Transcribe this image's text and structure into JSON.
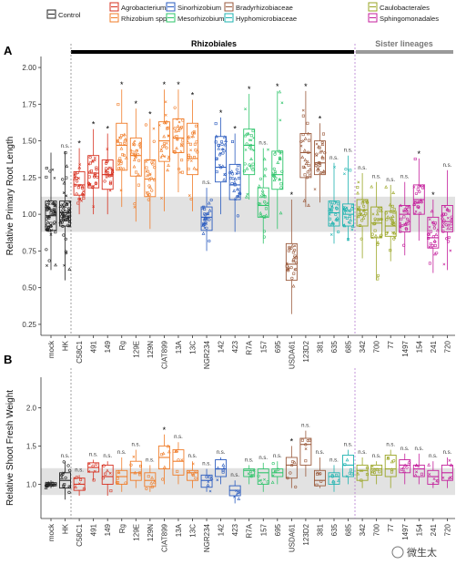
{
  "legend": {
    "entries": [
      {
        "label": "Control",
        "color": "#222222"
      },
      {
        "label": "Agrobacterium",
        "color": "#d7301f"
      },
      {
        "label": "Rhizobium spp.",
        "color": "#f07c28"
      },
      {
        "label": "Sinorhizobium",
        "color": "#2a5bbf"
      },
      {
        "label": "Mesorhizobium",
        "color": "#2ec46a"
      },
      {
        "label": "Bradyrhizobiaceae",
        "color": "#9a5a3c"
      },
      {
        "label": "Hyphomicrobiaceae",
        "color": "#1fb3b0"
      },
      {
        "label": "Caulobacterales",
        "color": "#9aa524"
      },
      {
        "label": "Sphingomonadales",
        "color": "#c41f9c"
      }
    ]
  },
  "panels": {
    "a_label": "A",
    "b_label": "B"
  },
  "groups": {
    "rhizobiales": "Rhizobiales",
    "sister": "Sister lineages"
  },
  "watermark": "微生太",
  "chart_data": [
    {
      "type": "box",
      "panel": "A",
      "ylabel": "Relative Primary Root Length",
      "ylim": [
        0.2,
        2.05
      ],
      "yticks": [
        0.25,
        0.5,
        0.75,
        1.0,
        1.25,
        1.5,
        1.75,
        2.0
      ],
      "ytick_labels": [
        "0.25",
        "0.50",
        "0.75",
        "1.00",
        "1.25",
        "1.50",
        "1.75",
        "2.00"
      ],
      "reference_band": [
        0.88,
        1.12
      ],
      "categories": [
        "mock",
        "HK",
        "C58C1",
        "491",
        "149",
        "Rg",
        "129E",
        "129N",
        "CIAT899",
        "13A",
        "13C",
        "NGR234",
        "142",
        "423",
        "R7A",
        "157",
        "695",
        "USDA61",
        "123D2",
        "381",
        "635",
        "685",
        "342",
        "700",
        "77",
        "1497",
        "154",
        "241",
        "720"
      ],
      "taxon_group": [
        "Control",
        "Control",
        "Agrobacterium",
        "Agrobacterium",
        "Agrobacterium",
        "Rhizobium spp.",
        "Rhizobium spp.",
        "Rhizobium spp.",
        "Rhizobium spp.",
        "Rhizobium spp.",
        "Rhizobium spp.",
        "Sinorhizobium",
        "Sinorhizobium",
        "Sinorhizobium",
        "Mesorhizobium",
        "Mesorhizobium",
        "Mesorhizobium",
        "Bradyrhizobiaceae",
        "Bradyrhizobiaceae",
        "Bradyrhizobiaceae",
        "Hyphomicrobiaceae",
        "Hyphomicrobiaceae",
        "Caulobacterales",
        "Caulobacterales",
        "Caulobacterales",
        "Sphingomonadales",
        "Sphingomonadales",
        "Sphingomonadales",
        "Sphingomonadales"
      ],
      "boxes": [
        {
          "min": 0.62,
          "q1": 0.89,
          "median": 0.99,
          "q3": 1.09,
          "max": 1.42
        },
        {
          "min": 0.55,
          "q1": 0.92,
          "median": 1.01,
          "q3": 1.09,
          "max": 1.43
        },
        {
          "min": 1.0,
          "q1": 1.13,
          "median": 1.2,
          "q3": 1.29,
          "max": 1.45
        },
        {
          "min": 1.0,
          "q1": 1.18,
          "median": 1.28,
          "q3": 1.4,
          "max": 1.58
        },
        {
          "min": 1.0,
          "q1": 1.17,
          "median": 1.27,
          "q3": 1.37,
          "max": 1.55
        },
        {
          "min": 1.05,
          "q1": 1.3,
          "median": 1.47,
          "q3": 1.62,
          "max": 1.85
        },
        {
          "min": 0.95,
          "q1": 1.26,
          "median": 1.4,
          "q3": 1.52,
          "max": 1.72
        },
        {
          "min": 0.9,
          "q1": 1.12,
          "median": 1.24,
          "q3": 1.37,
          "max": 1.65
        },
        {
          "min": 1.02,
          "q1": 1.36,
          "median": 1.5,
          "q3": 1.63,
          "max": 1.85
        },
        {
          "min": 1.15,
          "q1": 1.42,
          "median": 1.52,
          "q3": 1.65,
          "max": 1.85
        },
        {
          "min": 1.02,
          "q1": 1.27,
          "median": 1.38,
          "q3": 1.62,
          "max": 1.78
        },
        {
          "min": 0.75,
          "q1": 0.89,
          "median": 0.98,
          "q3": 1.05,
          "max": 1.18
        },
        {
          "min": 1.0,
          "q1": 1.22,
          "median": 1.32,
          "q3": 1.53,
          "max": 1.66
        },
        {
          "min": 0.88,
          "q1": 1.1,
          "median": 1.2,
          "q3": 1.34,
          "max": 1.55
        },
        {
          "min": 1.1,
          "q1": 1.27,
          "median": 1.47,
          "q3": 1.58,
          "max": 1.82
        },
        {
          "min": 0.8,
          "q1": 0.98,
          "median": 1.06,
          "q3": 1.18,
          "max": 1.45
        },
        {
          "min": 0.9,
          "q1": 1.17,
          "median": 1.27,
          "q3": 1.43,
          "max": 1.84
        },
        {
          "min": 0.32,
          "q1": 0.55,
          "median": 0.66,
          "q3": 0.8,
          "max": 1.1
        },
        {
          "min": 1.05,
          "q1": 1.25,
          "median": 1.42,
          "q3": 1.55,
          "max": 1.84
        },
        {
          "min": 1.08,
          "q1": 1.27,
          "median": 1.35,
          "q3": 1.5,
          "max": 1.62
        },
        {
          "min": 0.8,
          "q1": 0.92,
          "median": 1.01,
          "q3": 1.09,
          "max": 1.35
        },
        {
          "min": 0.82,
          "q1": 0.92,
          "median": 1.0,
          "q3": 1.07,
          "max": 1.4
        },
        {
          "min": 0.7,
          "q1": 0.92,
          "median": 1.03,
          "q3": 1.1,
          "max": 1.28
        },
        {
          "min": 0.55,
          "q1": 0.84,
          "median": 0.94,
          "q3": 1.05,
          "max": 1.22
        },
        {
          "min": 0.68,
          "q1": 0.85,
          "median": 0.92,
          "q3": 1.02,
          "max": 1.2
        },
        {
          "min": 0.72,
          "q1": 0.88,
          "median": 1.0,
          "q3": 1.06,
          "max": 1.22
        },
        {
          "min": 0.82,
          "q1": 1.0,
          "median": 1.1,
          "q3": 1.2,
          "max": 1.38
        },
        {
          "min": 0.6,
          "q1": 0.77,
          "median": 0.84,
          "q3": 0.98,
          "max": 1.1
        },
        {
          "min": 0.62,
          "q1": 0.88,
          "median": 0.95,
          "q3": 1.06,
          "max": 1.3
        }
      ],
      "significance": [
        "",
        "n.s.",
        "*",
        "*",
        "*",
        "*",
        "*",
        "*",
        "*",
        "*",
        "*",
        "n.s.",
        "*",
        "*",
        "*",
        "n.s.",
        "*",
        "*",
        "*",
        "*",
        "n.s.",
        "n.s.",
        "n.s.",
        "n.s.",
        "n.s.",
        "n.s.",
        "*",
        "*",
        "n.s."
      ]
    },
    {
      "type": "box",
      "panel": "B",
      "ylabel": "Relative Shoot Fresh Weight",
      "ylim": [
        0.6,
        2.35
      ],
      "yticks": [
        1.0,
        1.5,
        2.0
      ],
      "ytick_labels": [
        "1.0",
        "1.5",
        "2.0"
      ],
      "reference_band": [
        0.86,
        1.21
      ],
      "categories": [
        "mock",
        "HK",
        "C58C1",
        "491",
        "149",
        "Rg",
        "129E",
        "129N",
        "CIAT899",
        "13A",
        "13C",
        "NGR234",
        "142",
        "423",
        "R7A",
        "157",
        "695",
        "USDA61",
        "123D2",
        "381",
        "635",
        "685",
        "342",
        "700",
        "77",
        "1497",
        "154",
        "241",
        "720"
      ],
      "boxes": [
        {
          "min": 0.95,
          "q1": 0.98,
          "median": 1.0,
          "q3": 1.02,
          "max": 1.05
        },
        {
          "min": 0.8,
          "q1": 0.95,
          "median": 1.05,
          "q3": 1.15,
          "max": 1.3
        },
        {
          "min": 0.85,
          "q1": 0.92,
          "median": 1.0,
          "q3": 1.08,
          "max": 1.12
        },
        {
          "min": 1.05,
          "q1": 1.16,
          "median": 1.22,
          "q3": 1.28,
          "max": 1.32
        },
        {
          "min": 0.85,
          "q1": 1.0,
          "median": 1.1,
          "q3": 1.25,
          "max": 1.3
        },
        {
          "min": 0.9,
          "q1": 1.0,
          "median": 1.1,
          "q3": 1.18,
          "max": 1.35
        },
        {
          "min": 0.95,
          "q1": 1.05,
          "median": 1.15,
          "q3": 1.3,
          "max": 1.45
        },
        {
          "min": 0.9,
          "q1": 0.97,
          "median": 1.05,
          "q3": 1.15,
          "max": 1.25
        },
        {
          "min": 1.0,
          "q1": 1.2,
          "median": 1.35,
          "q3": 1.5,
          "max": 1.65
        },
        {
          "min": 1.0,
          "q1": 1.12,
          "median": 1.3,
          "q3": 1.45,
          "max": 1.55
        },
        {
          "min": 0.95,
          "q1": 1.05,
          "median": 1.15,
          "q3": 1.18,
          "max": 1.3
        },
        {
          "min": 0.9,
          "q1": 0.96,
          "median": 1.05,
          "q3": 1.12,
          "max": 1.2
        },
        {
          "min": 1.0,
          "q1": 1.1,
          "median": 1.2,
          "q3": 1.32,
          "max": 1.35
        },
        {
          "min": 0.75,
          "q1": 0.85,
          "median": 0.92,
          "q3": 0.98,
          "max": 1.05
        },
        {
          "min": 1.0,
          "q1": 1.1,
          "median": 1.18,
          "q3": 1.2,
          "max": 1.25
        },
        {
          "min": 0.9,
          "q1": 1.0,
          "median": 1.15,
          "q3": 1.2,
          "max": 1.28
        },
        {
          "min": 1.0,
          "q1": 1.1,
          "median": 1.15,
          "q3": 1.2,
          "max": 1.3
        },
        {
          "min": 0.95,
          "q1": 1.08,
          "median": 1.25,
          "q3": 1.35,
          "max": 1.5
        },
        {
          "min": 1.1,
          "q1": 1.25,
          "median": 1.52,
          "q3": 1.6,
          "max": 1.7
        },
        {
          "min": 0.95,
          "q1": 0.98,
          "median": 1.05,
          "q3": 1.18,
          "max": 1.35
        },
        {
          "min": 0.9,
          "q1": 1.0,
          "median": 1.1,
          "q3": 1.15,
          "max": 1.25
        },
        {
          "min": 1.0,
          "q1": 1.1,
          "median": 1.25,
          "q3": 1.38,
          "max": 1.45
        },
        {
          "min": 0.95,
          "q1": 1.05,
          "median": 1.18,
          "q3": 1.25,
          "max": 1.35
        },
        {
          "min": 1.0,
          "q1": 1.12,
          "median": 1.2,
          "q3": 1.25,
          "max": 1.3
        },
        {
          "min": 0.95,
          "q1": 1.1,
          "median": 1.2,
          "q3": 1.38,
          "max": 1.45
        },
        {
          "min": 1.0,
          "q1": 1.15,
          "median": 1.25,
          "q3": 1.32,
          "max": 1.4
        },
        {
          "min": 1.0,
          "q1": 1.1,
          "median": 1.2,
          "q3": 1.25,
          "max": 1.4
        },
        {
          "min": 0.95,
          "q1": 1.0,
          "median": 1.1,
          "q3": 1.18,
          "max": 1.3
        },
        {
          "min": 0.95,
          "q1": 1.05,
          "median": 1.15,
          "q3": 1.25,
          "max": 1.35
        }
      ],
      "significance": [
        "",
        "n.s.",
        "n.s.",
        "n.s.",
        "n.s.",
        "n.s.",
        "n.s.",
        "n.s.",
        "*",
        "n.s.",
        "n.s.",
        "n.s.",
        "n.s.",
        "n.s.",
        "n.s.",
        "n.s.",
        "n.s.",
        "*",
        "n.s.",
        "n.s.",
        "n.s.",
        "n.s.",
        "n.s.",
        "n.s.",
        "n.s.",
        "n.s.",
        "n.s.",
        "n.s.",
        "n.s."
      ]
    }
  ]
}
